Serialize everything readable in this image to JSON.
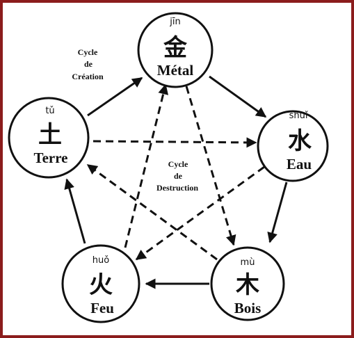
{
  "diagram": {
    "elements": {
      "metal": {
        "pinyin": "jīn",
        "hanzi": "金",
        "name": "Métal"
      },
      "water": {
        "pinyin": "shuǐ",
        "hanzi": "水",
        "name": "Eau"
      },
      "wood": {
        "pinyin": "mù",
        "hanzi": "木",
        "name": "Bois"
      },
      "fire": {
        "pinyin": "huǒ",
        "hanzi": "火",
        "name": "Feu"
      },
      "earth": {
        "pinyin": "tǔ",
        "hanzi": "土",
        "name": "Terre"
      }
    },
    "creation_cycle": {
      "line1": "Cycle",
      "line2": "de",
      "line3": "Création"
    },
    "destruction_cycle": {
      "line1": "Cycle",
      "line2": "de",
      "line3": "Destruction"
    },
    "colors": {
      "border": "#8b1c1c",
      "ink": "#111111"
    }
  }
}
